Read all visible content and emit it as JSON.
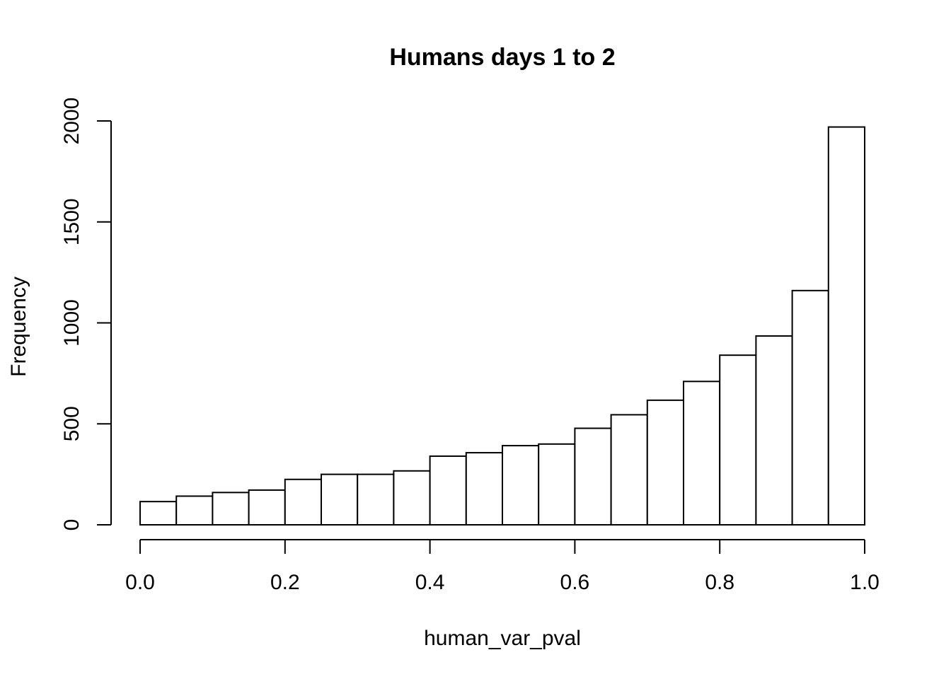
{
  "chart_data": {
    "type": "bar",
    "subtype": "histogram",
    "title": "Humans days 1 to 2",
    "xlabel": "human_var_pval",
    "ylabel": "Frequency",
    "bin_edges": [
      0.0,
      0.05,
      0.1,
      0.15,
      0.2,
      0.25,
      0.3,
      0.35,
      0.4,
      0.45,
      0.5,
      0.55,
      0.6,
      0.65,
      0.7,
      0.75,
      0.8,
      0.85,
      0.9,
      0.95,
      1.0
    ],
    "values": [
      115,
      142,
      160,
      172,
      225,
      250,
      250,
      267,
      340,
      357,
      392,
      400,
      478,
      545,
      617,
      710,
      840,
      935,
      1160,
      1970
    ],
    "xlim": [
      0.0,
      1.0
    ],
    "ylim": [
      0,
      2000
    ],
    "x_ticks": [
      0.0,
      0.2,
      0.4,
      0.6,
      0.8,
      1.0
    ],
    "x_tick_labels": [
      "0.0",
      "0.2",
      "0.4",
      "0.6",
      "0.8",
      "1.0"
    ],
    "y_ticks": [
      0,
      500,
      1000,
      1500,
      2000
    ],
    "y_tick_labels": [
      "0",
      "500",
      "1000",
      "1500",
      "2000"
    ],
    "grid": false,
    "legend": "none",
    "colors": {
      "bar_fill": "#ffffff",
      "bar_stroke": "#000000",
      "axis": "#000000"
    }
  }
}
